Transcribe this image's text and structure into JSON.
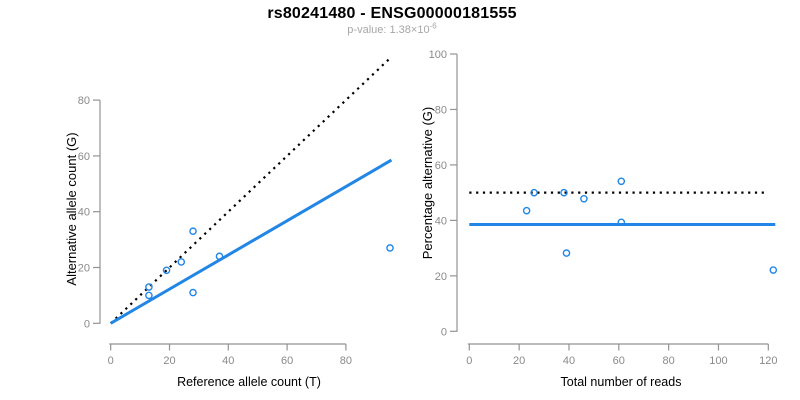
{
  "header": {
    "title": "rs80241480 - ENSG00000181555",
    "subtitle_prefix": "p-value: 1.38×10",
    "subtitle_exponent": "-6"
  },
  "colors": {
    "accent_blue": "#2186E6",
    "axis_gray": "#949494",
    "tick_label_gray": "#8a8a8a",
    "axis_title_black": "#000000",
    "dotted_line_black": "#000000",
    "subtitle_gray": "#a6a6a6"
  },
  "chart_data": [
    {
      "type": "scatter",
      "panel": "allele-counts",
      "xlabel": "Reference allele count (T)",
      "ylabel": "Alternative allele count (G)",
      "xticks": [
        0,
        20,
        40,
        60,
        80
      ],
      "yticks": [
        0,
        20,
        40,
        60,
        80
      ],
      "xlim": [
        0,
        98
      ],
      "ylim": [
        0,
        95
      ],
      "grid": false,
      "legend": "none",
      "points": [
        [
          13,
          10
        ],
        [
          13,
          13
        ],
        [
          19,
          19
        ],
        [
          24,
          22
        ],
        [
          28,
          11
        ],
        [
          28,
          33
        ],
        [
          37,
          24
        ],
        [
          95,
          27
        ]
      ],
      "lines": [
        {
          "name": "identity-line",
          "style": "dotted",
          "color": "#000000",
          "x1": 0,
          "y1": 0,
          "x2": 95,
          "y2": 95
        },
        {
          "name": "trend-line",
          "style": "solid",
          "color": "#2186E6",
          "x1": 0,
          "y1": 0,
          "x2": 95.5,
          "y2": 58.5
        }
      ]
    },
    {
      "type": "scatter",
      "panel": "percentage-alternative",
      "xlabel": "Total number of reads",
      "ylabel": "Percentage alternative (G)",
      "xticks": [
        0,
        20,
        40,
        60,
        80,
        100,
        120
      ],
      "yticks": [
        0,
        20,
        40,
        60,
        80,
        100
      ],
      "xlim": [
        0,
        123
      ],
      "ylim": [
        0,
        100
      ],
      "grid": false,
      "legend": "none",
      "points": [
        [
          23,
          43.5
        ],
        [
          26,
          50
        ],
        [
          38,
          50
        ],
        [
          39,
          28.2
        ],
        [
          46,
          47.8
        ],
        [
          61,
          39.3
        ],
        [
          61,
          54.1
        ],
        [
          122,
          22.1
        ]
      ],
      "lines": [
        {
          "name": "fifty-percent-line",
          "style": "dotted",
          "color": "#000000",
          "x1": 0,
          "y1": 50,
          "x2": 119.5,
          "y2": 50
        },
        {
          "name": "mean-percentage-line",
          "style": "solid",
          "color": "#2186E6",
          "x1": 0,
          "y1": 38.5,
          "x2": 122.8,
          "y2": 38.5
        }
      ]
    }
  ]
}
